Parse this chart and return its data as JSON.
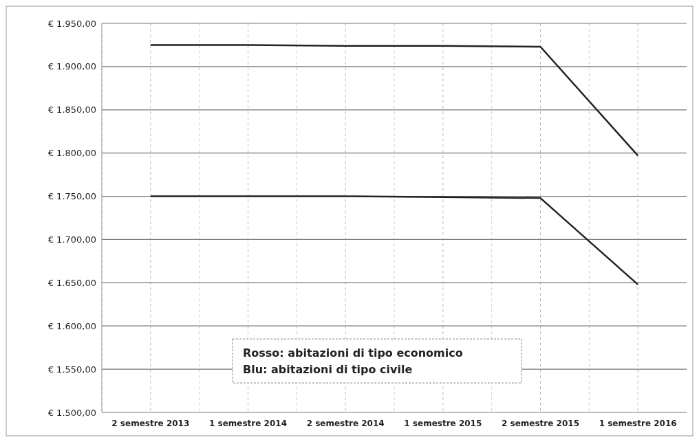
{
  "chart_data": {
    "type": "line",
    "categories": [
      "2 semestre 2013",
      "1 semestre 2014",
      "2 semestre 2014",
      "1 semestre 2015",
      "2 semestre 2015",
      "1 semestre 2016"
    ],
    "series": [
      {
        "color": "#222222",
        "values": [
          1925,
          1925,
          1924,
          1924,
          1923,
          1797
        ]
      },
      {
        "color": "#222222",
        "values": [
          1750,
          1750,
          1750,
          1749,
          1748,
          1648
        ]
      }
    ],
    "ylim": [
      1500,
      1950
    ],
    "yticks": [
      {
        "value": 1500,
        "label": "€ 1.500,00"
      },
      {
        "value": 1550,
        "label": "€ 1.550,00"
      },
      {
        "value": 1600,
        "label": "€ 1.600,00"
      },
      {
        "value": 1650,
        "label": "€ 1.650,00"
      },
      {
        "value": 1700,
        "label": "€ 1.700,00"
      },
      {
        "value": 1750,
        "label": "€ 1.750,00"
      },
      {
        "value": 1800,
        "label": "€ 1.800,00"
      },
      {
        "value": 1850,
        "label": "€ 1.850,00"
      },
      {
        "value": 1900,
        "label": "€ 1.900,00"
      },
      {
        "value": 1950,
        "label": "€ 1.950,00"
      }
    ],
    "grid": true,
    "marker": "none",
    "line_style": "solid",
    "annotations": [
      "Rosso: abitazioni di tipo economico",
      "Blu: abitazioni di tipo civile"
    ]
  }
}
